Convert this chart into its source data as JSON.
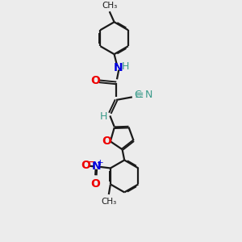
{
  "bg_color": "#ececec",
  "bond_color": "#1a1a1a",
  "bond_lw": 1.6,
  "atom_colors": {
    "N": "#0000dd",
    "O": "#ee0000",
    "H_teal": "#3a9a8a",
    "CN_teal": "#3a9a8a"
  },
  "figsize": [
    3.0,
    3.0
  ],
  "dpi": 100,
  "xlim": [
    0,
    10
  ],
  "ylim": [
    0,
    14
  ]
}
